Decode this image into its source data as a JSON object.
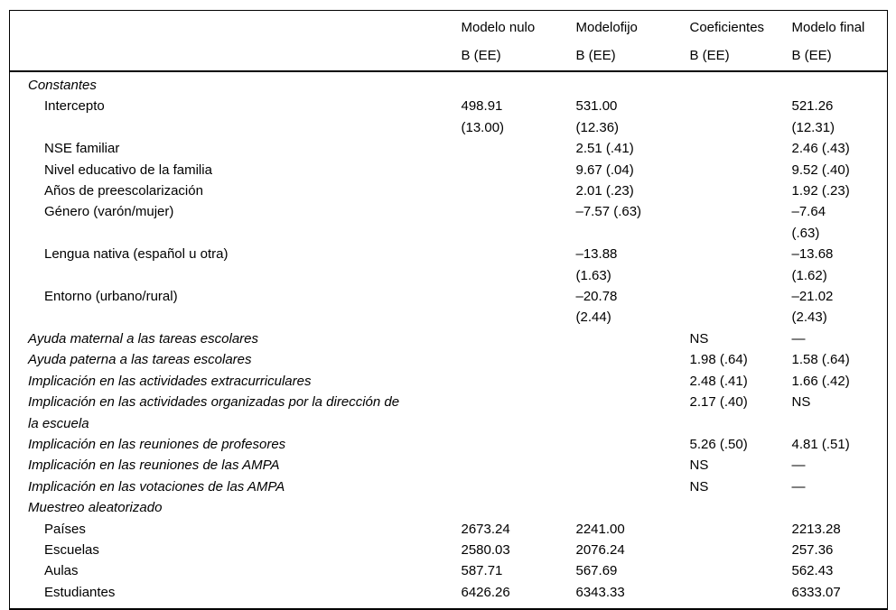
{
  "table": {
    "columns": [
      {
        "title": "Modelo nulo",
        "sub": "B (EE)"
      },
      {
        "title": "Modelofijo",
        "sub": "B (EE)"
      },
      {
        "title": "Coeficientes",
        "sub": "B (EE)"
      },
      {
        "title": "Modelo final",
        "sub": "B (EE)"
      }
    ],
    "rows": [
      {
        "label": "Constantes",
        "italic": true,
        "indent": false,
        "cells": [
          "",
          "",
          "",
          ""
        ]
      },
      {
        "label": "Intercepto",
        "italic": false,
        "indent": true,
        "cells": [
          "498.91\n(13.00)",
          "531.00\n(12.36)",
          "",
          "521.26\n(12.31)"
        ]
      },
      {
        "label": "NSE familiar",
        "italic": false,
        "indent": true,
        "cells": [
          "",
          "2.51 (.41)",
          "",
          "2.46 (.43)"
        ]
      },
      {
        "label": "Nivel educativo de la familia",
        "italic": false,
        "indent": true,
        "cells": [
          "",
          "9.67 (.04)",
          "",
          "9.52 (.40)"
        ]
      },
      {
        "label": "Años de preescolarización",
        "italic": false,
        "indent": true,
        "cells": [
          "",
          "2.01 (.23)",
          "",
          "1.92 (.23)"
        ]
      },
      {
        "label": "Género (varón/mujer)",
        "italic": false,
        "indent": true,
        "cells": [
          "",
          "–7.57 (.63)",
          "",
          "–7.64\n(.63)"
        ]
      },
      {
        "label": "Lengua nativa (español u otra)",
        "italic": false,
        "indent": true,
        "cells": [
          "",
          "–13.88\n(1.63)",
          "",
          "–13.68\n(1.62)"
        ]
      },
      {
        "label": "Entorno (urbano/rural)",
        "italic": false,
        "indent": true,
        "cells": [
          "",
          "–20.78\n(2.44)",
          "",
          "–21.02\n(2.43)"
        ]
      },
      {
        "label": "Ayuda maternal a las tareas escolares",
        "italic": true,
        "indent": false,
        "cells": [
          "",
          "",
          "NS",
          "—"
        ]
      },
      {
        "label": "Ayuda paterna a las tareas escolares",
        "italic": true,
        "indent": false,
        "cells": [
          "",
          "",
          "1.98 (.64)",
          "1.58 (.64)"
        ]
      },
      {
        "label": "Implicación en las actividades extracurriculares",
        "italic": true,
        "indent": false,
        "cells": [
          "",
          "",
          "2.48 (.41)",
          "1.66 (.42)"
        ]
      },
      {
        "label": "Implicación en las actividades organizadas por la dirección de\nla escuela",
        "italic": true,
        "indent": false,
        "cells": [
          "",
          "",
          "2.17 (.40)",
          "NS"
        ]
      },
      {
        "label": "Implicación en las reuniones de profesores",
        "italic": true,
        "indent": false,
        "cells": [
          "",
          "",
          "5.26 (.50)",
          "4.81 (.51)"
        ]
      },
      {
        "label": "Implicación en las reuniones de las AMPA",
        "italic": true,
        "indent": false,
        "cells": [
          "",
          "",
          "NS",
          "—"
        ]
      },
      {
        "label": "Implicación en las votaciones de las AMPA",
        "italic": true,
        "indent": false,
        "cells": [
          "",
          "",
          "NS",
          "—"
        ]
      },
      {
        "label": "Muestreo aleatorizado",
        "italic": true,
        "indent": false,
        "cells": [
          "",
          "",
          "",
          ""
        ]
      },
      {
        "label": "Países",
        "italic": false,
        "indent": true,
        "cells": [
          "2673.24",
          "2241.00",
          "",
          "2213.28"
        ]
      },
      {
        "label": "Escuelas",
        "italic": false,
        "indent": true,
        "cells": [
          "2580.03",
          "2076.24",
          "",
          "257.36"
        ]
      },
      {
        "label": "Aulas",
        "italic": false,
        "indent": true,
        "cells": [
          "587.71",
          "567.69",
          "",
          "562.43"
        ]
      },
      {
        "label": "Estudiantes",
        "italic": false,
        "indent": true,
        "cells": [
          "6426.26",
          "6343.33",
          "",
          "6333.07"
        ]
      }
    ]
  }
}
